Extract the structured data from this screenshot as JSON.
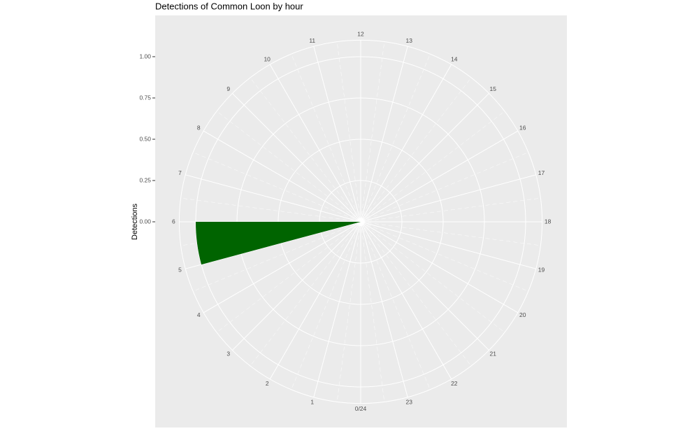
{
  "chart_data": {
    "type": "polar-bar",
    "title": "Detections of Common Loon by hour",
    "y_label": "Detections",
    "x": [
      0,
      1,
      2,
      3,
      4,
      5,
      6,
      7,
      8,
      9,
      10,
      11,
      12,
      13,
      14,
      15,
      16,
      17,
      18,
      19,
      20,
      21,
      22,
      23
    ],
    "values": [
      0,
      0,
      0,
      0,
      0,
      1,
      0,
      0,
      0,
      0,
      0,
      0,
      0,
      0,
      0,
      0,
      0,
      0,
      0,
      0,
      0,
      0,
      0,
      0
    ],
    "color": "#006400",
    "xlim": [
      0,
      24
    ],
    "xticks": [
      {
        "value": 0,
        "label": "0/24"
      },
      1,
      2,
      3,
      4,
      5,
      6,
      7,
      8,
      9,
      10,
      11,
      12,
      13,
      14,
      15,
      16,
      17,
      18,
      19,
      20,
      21,
      22,
      23
    ],
    "ylim": [
      0,
      1.1
    ],
    "yticks": [
      {
        "value": 0,
        "label": "0.00"
      },
      {
        "value": 0.25,
        "label": "0.25"
      },
      {
        "value": 0.5,
        "label": "0.50"
      },
      {
        "value": 0.75,
        "label": "0.75"
      },
      {
        "value": 1,
        "label": "1.00"
      }
    ],
    "grid": true
  }
}
